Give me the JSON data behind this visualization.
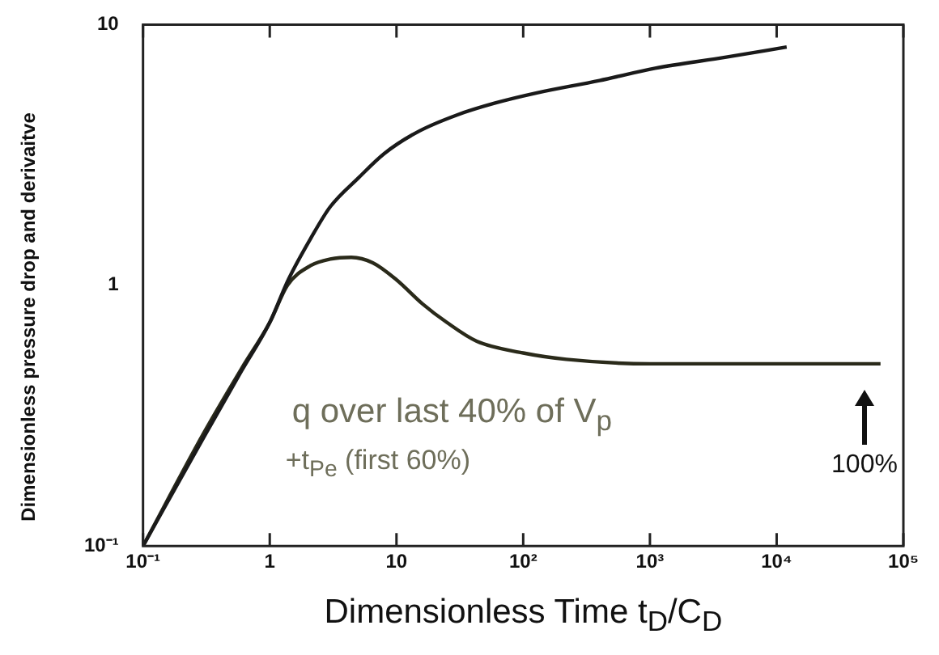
{
  "chart_data": {
    "type": "line",
    "xlabel": "Dimensionless Time t$_{D}$/C$_{D}$",
    "ylabel": "Dimensionless pressure drop and derivaitve",
    "log": "xy",
    "xlim": [
      0.1,
      100000
    ],
    "ylim": [
      0.1,
      10
    ],
    "xticks": [
      {
        "value": 0.1,
        "label": "10⁻¹"
      },
      1,
      10,
      {
        "value": 100,
        "label": "10²"
      },
      {
        "value": 1000,
        "label": "10³"
      },
      {
        "value": 10000,
        "label": "10⁴"
      },
      {
        "value": 100000,
        "label": "10⁵"
      }
    ],
    "yticks": [
      {
        "value": 0.1,
        "label": "10⁻¹"
      },
      1,
      10
    ],
    "series": [
      {
        "color": "#1a1a1a",
        "x": [
          0.1,
          0.3,
          0.6,
          1,
          1.4,
          2.1,
          3,
          5,
          8,
          14.6,
          30,
          60,
          126,
          400,
          1100,
          4000,
          12000
        ],
        "values": [
          0.1,
          0.26,
          0.47,
          0.72,
          1.05,
          1.51,
          2.0,
          2.58,
          3.2,
          3.87,
          4.5,
          5.0,
          5.46,
          6.1,
          6.8,
          7.5,
          8.2
        ]
      },
      {
        "color": "#2a2a1a",
        "x": [
          0.1,
          0.3,
          0.6,
          1,
          1.38,
          2.1,
          3,
          4.4,
          6.5,
          10,
          16,
          25,
          43,
          100,
          219,
          1000,
          10000,
          66000
        ],
        "values": [
          0.1,
          0.27,
          0.48,
          0.72,
          1.0,
          1.19,
          1.26,
          1.28,
          1.22,
          1.05,
          0.85,
          0.72,
          0.61,
          0.55,
          0.52,
          0.5,
          0.5,
          0.5
        ]
      }
    ],
    "annotations": [
      "q over last 40% of V$_{p}$",
      "+t$_{Pe}$ (first 60%)",
      "100%"
    ]
  }
}
